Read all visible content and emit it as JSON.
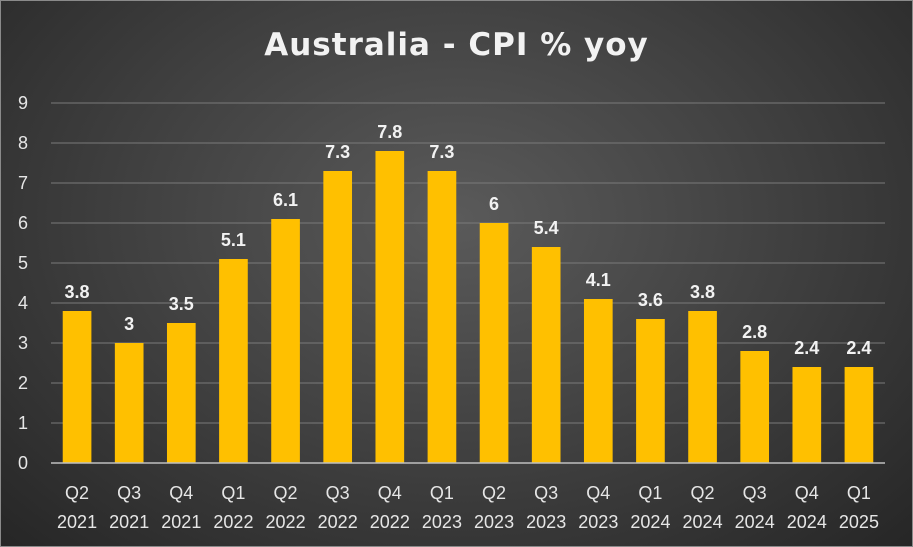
{
  "chart_data": {
    "type": "bar",
    "title": "Australia - CPI % yoy",
    "categories": [
      [
        "Q2",
        "2021"
      ],
      [
        "Q3",
        "2021"
      ],
      [
        "Q4",
        "2021"
      ],
      [
        "Q1",
        "2022"
      ],
      [
        "Q2",
        "2022"
      ],
      [
        "Q3",
        "2022"
      ],
      [
        "Q4",
        "2022"
      ],
      [
        "Q1",
        "2023"
      ],
      [
        "Q2",
        "2023"
      ],
      [
        "Q3",
        "2023"
      ],
      [
        "Q4",
        "2023"
      ],
      [
        "Q1",
        "2024"
      ],
      [
        "Q2",
        "2024"
      ],
      [
        "Q3",
        "2024"
      ],
      [
        "Q4",
        "2024"
      ],
      [
        "Q1",
        "2025"
      ]
    ],
    "values": [
      3.8,
      3,
      3.5,
      5.1,
      6.1,
      7.3,
      7.8,
      7.3,
      6,
      5.4,
      4.1,
      3.6,
      3.8,
      2.8,
      2.4,
      2.4
    ],
    "data_labels": [
      "3.8",
      "3",
      "3.5",
      "5.1",
      "6.1",
      "7.3",
      "7.8",
      "7.3",
      "6",
      "5.4",
      "4.1",
      "3.6",
      "3.8",
      "2.8",
      "2.4",
      "2.4"
    ],
    "ylim": [
      0,
      9
    ],
    "yticks": [
      0,
      1,
      2,
      3,
      4,
      5,
      6,
      7,
      8,
      9
    ],
    "grid": true,
    "legend": "none",
    "xlabel": "",
    "ylabel": "",
    "colors": {
      "bar": "#FFC000",
      "text": "#F2F2F2",
      "axis_text": "#E6E6E6",
      "grid": "#7a7a7a",
      "axis": "#bfbfbf"
    }
  }
}
